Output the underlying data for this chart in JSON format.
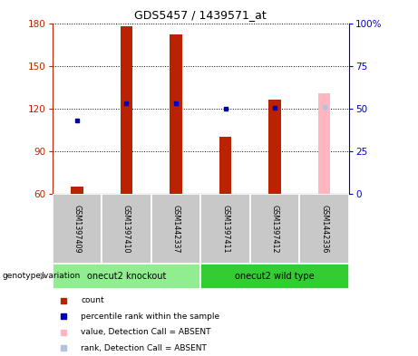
{
  "title": "GDS5457 / 1439571_at",
  "samples": [
    "GSM1397409",
    "GSM1397410",
    "GSM1442337",
    "GSM1397411",
    "GSM1397412",
    "GSM1442336"
  ],
  "count_values": [
    65,
    178,
    172,
    100,
    126,
    null
  ],
  "rank_values_pct": [
    43,
    53,
    53,
    50,
    50.5,
    51
  ],
  "absent_count_value": 131,
  "absent_rank_pct": 51,
  "absent_sample_index": 5,
  "ylim_left": [
    60,
    180
  ],
  "ylim_right": [
    0,
    100
  ],
  "yticks_left": [
    60,
    90,
    120,
    150,
    180
  ],
  "yticks_right": [
    0,
    25,
    50,
    75,
    100
  ],
  "groups": [
    {
      "label": "onecut2 knockout",
      "indices": [
        0,
        1,
        2
      ],
      "color": "#90EE90"
    },
    {
      "label": "onecut2 wild type",
      "indices": [
        3,
        4,
        5
      ],
      "color": "#33CC33"
    }
  ],
  "count_color": "#BB2200",
  "rank_color": "#0000BB",
  "absent_bar_color": "#FFB6C1",
  "absent_rank_color": "#B0C4DE",
  "group_box_color": "#C8C8C8",
  "legend_items": [
    {
      "label": "count",
      "color": "#BB2200"
    },
    {
      "label": "percentile rank within the sample",
      "color": "#0000BB"
    },
    {
      "label": "value, Detection Call = ABSENT",
      "color": "#FFB6C1"
    },
    {
      "label": "rank, Detection Call = ABSENT",
      "color": "#B0C4DE"
    }
  ]
}
